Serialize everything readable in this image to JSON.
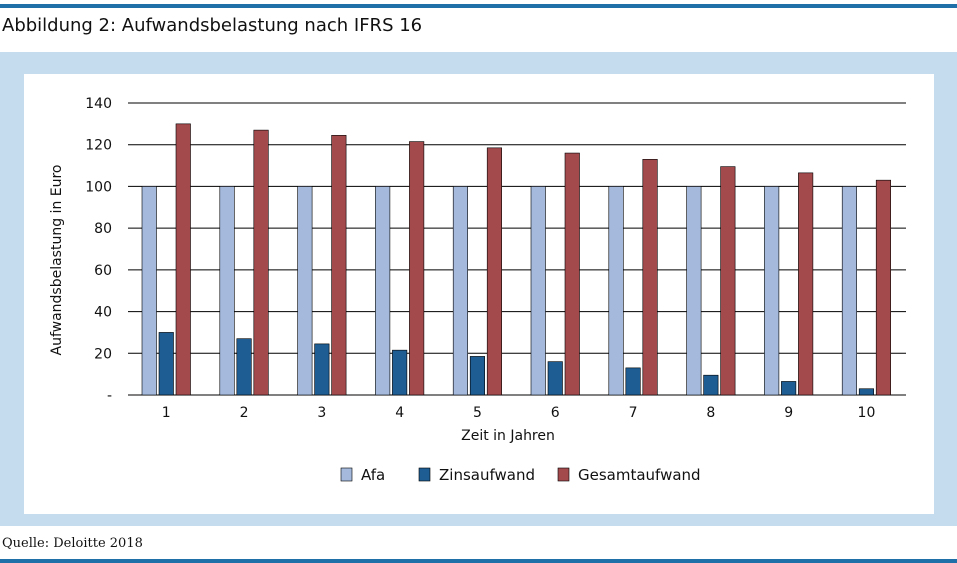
{
  "figure": {
    "title": "Abbildung 2: Aufwandsbelastung nach IFRS 16",
    "source": "Quelle: Deloitte 2018"
  },
  "colors": {
    "rule": "#1f6fa8",
    "panel": "#c5dcef",
    "afa": "#a4b9db",
    "zins": "#1e5d93",
    "gesamt": "#a34a4d"
  },
  "chart_data": {
    "type": "bar",
    "xlabel": "Zeit in Jahren",
    "ylabel": "Aufwandsbelastung in Euro",
    "ylim": [
      0,
      140
    ],
    "yticks": [
      0,
      20,
      40,
      60,
      80,
      100,
      120,
      140
    ],
    "ytick_labels": [
      "-",
      "20",
      "40",
      "60",
      "80",
      "100",
      "120",
      "140"
    ],
    "grid": true,
    "legend": "bottom",
    "categories": [
      "1",
      "2",
      "3",
      "4",
      "5",
      "6",
      "7",
      "8",
      "9",
      "10"
    ],
    "series": [
      {
        "name": "Afa",
        "values": [
          100,
          100,
          100,
          100,
          100,
          100,
          100,
          100,
          100,
          100
        ]
      },
      {
        "name": "Zinsaufwand",
        "values": [
          30,
          27,
          24.5,
          21.5,
          18.5,
          16,
          13,
          9.5,
          6.5,
          3
        ]
      },
      {
        "name": "Gesamtaufwand",
        "values": [
          130,
          127,
          124.5,
          121.5,
          118.5,
          116,
          113,
          109.5,
          106.5,
          103
        ]
      }
    ]
  }
}
